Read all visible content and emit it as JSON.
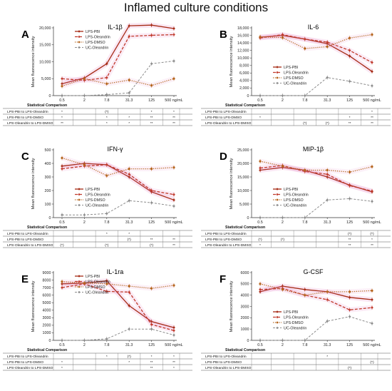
{
  "figure_title": "Inflamed culture conditions",
  "x_ticks": [
    "0.5",
    "2",
    "7.8",
    "31.3",
    "125",
    "500 ng/mL"
  ],
  "series_names": [
    "LPS-PBI",
    "LPS-Oleandrin",
    "LPS-DMSO",
    "UC-Oleandrin"
  ],
  "series_colors": [
    "#a52a14",
    "#c0392b",
    "#b5651d",
    "#8c8c8c"
  ],
  "stat_header": "Statistical Comparison",
  "stat_labels": [
    "LPS-PBI to LPS-Oleandrin",
    "LPS-PBI to LPS-DMSO",
    "LPS-Oleandrin to LPS-DMSO"
  ],
  "chart_data": [
    {
      "letter": "A",
      "title": "IL-1β",
      "type": "line",
      "ylabel": "Mean fluorescence intensity",
      "ylim": [
        0,
        20000
      ],
      "yticks": [
        "0",
        "5,000",
        "10,000",
        "15,000",
        "20,000"
      ],
      "yticks_values": [
        0,
        5000,
        10000,
        15000,
        20000
      ],
      "series": [
        {
          "name": "LPS-PBI",
          "values": [
            3500,
            5200,
            9400,
            20600,
            20800,
            19800
          ]
        },
        {
          "name": "LPS-Oleandrin",
          "values": [
            5000,
            4500,
            5300,
            17500,
            17800,
            18000
          ]
        },
        {
          "name": "LPS-DMSO",
          "values": [
            2800,
            5000,
            3500,
            4600,
            3000,
            5000
          ]
        },
        {
          "name": "UC-Oleandrin",
          "values": [
            0,
            0,
            300,
            800,
            9400,
            10200
          ]
        }
      ],
      "stats": [
        [
          "*",
          "",
          "(*)",
          "",
          "*",
          "*"
        ],
        [
          "*",
          "",
          "*",
          "*",
          "**",
          "**"
        ],
        [
          "**",
          "",
          "*",
          "*",
          "**",
          "**"
        ]
      ]
    },
    {
      "letter": "B",
      "title": "IL-6",
      "type": "line",
      "ylabel": "Mean fluorescence intensity",
      "ylim": [
        0,
        18000
      ],
      "yticks": [
        "0",
        "2,000",
        "4,000",
        "6,000",
        "8,000",
        "10,000",
        "12,000",
        "14,000",
        "16,000",
        "18,000"
      ],
      "yticks_values": [
        0,
        2000,
        4000,
        6000,
        8000,
        10000,
        12000,
        14000,
        16000,
        18000
      ],
      "series": [
        {
          "name": "LPS-PBI",
          "values": [
            15500,
            16000,
            15000,
            13800,
            10500,
            6400
          ]
        },
        {
          "name": "LPS-Oleandrin",
          "values": [
            15300,
            16200,
            15000,
            14200,
            12000,
            8800
          ]
        },
        {
          "name": "LPS-DMSO",
          "values": [
            15600,
            15400,
            12500,
            13000,
            15300,
            16200
          ]
        },
        {
          "name": "UC-Oleandrin",
          "values": [
            0,
            0,
            0,
            4800,
            3800,
            2600
          ]
        }
      ],
      "stats": [
        [
          "",
          "",
          "",
          "",
          "",
          "*"
        ],
        [
          "*",
          "",
          "",
          "",
          "*",
          "**"
        ],
        [
          "",
          "",
          "(*)",
          "(*)",
          "**",
          "**"
        ]
      ]
    },
    {
      "letter": "C",
      "title": "IFN-γ",
      "type": "line",
      "ylabel": "Mean fluorescence intensity",
      "ylim": [
        0,
        500
      ],
      "yticks": [
        "0",
        "100",
        "200",
        "300",
        "400",
        "500"
      ],
      "yticks_values": [
        0,
        100,
        200,
        300,
        400,
        500
      ],
      "series": [
        {
          "name": "LPS-PBI",
          "values": [
            380,
            400,
            390,
            300,
            190,
            130
          ]
        },
        {
          "name": "LPS-Oleandrin",
          "values": [
            360,
            380,
            390,
            320,
            200,
            170
          ]
        },
        {
          "name": "LPS-DMSO",
          "values": [
            440,
            390,
            310,
            360,
            360,
            370
          ]
        },
        {
          "name": "UC-Oleandrin",
          "values": [
            20,
            20,
            30,
            125,
            110,
            85
          ]
        }
      ],
      "stats": [
        [
          "",
          "",
          "*",
          "*",
          "",
          ""
        ],
        [
          "",
          "",
          "",
          "(*)",
          "**",
          "**"
        ],
        [
          "(*)",
          "",
          "(*)",
          "",
          "(*)",
          "**"
        ]
      ]
    },
    {
      "letter": "D",
      "title": "MIP-1β",
      "type": "line",
      "ylabel": "Mean fluorescence intensity",
      "ylim": [
        0,
        25000
      ],
      "yticks": [
        "0",
        "5,000",
        "10,000",
        "15,000",
        "20,000",
        "25,000"
      ],
      "yticks_values": [
        0,
        5000,
        10000,
        15000,
        20000,
        25000
      ],
      "series": [
        {
          "name": "LPS-PBI",
          "values": [
            17500,
            18500,
            17500,
            15000,
            12000,
            9500
          ]
        },
        {
          "name": "LPS-Oleandrin",
          "values": [
            18300,
            19200,
            17000,
            16000,
            11800,
            9800
          ]
        },
        {
          "name": "LPS-DMSO",
          "values": [
            20800,
            19000,
            17500,
            17500,
            16800,
            18800
          ]
        },
        {
          "name": "UC-Oleandrin",
          "values": [
            0,
            0,
            0,
            6500,
            7000,
            6000
          ]
        }
      ],
      "stats": [
        [
          "",
          "",
          "",
          "",
          "(*)",
          "(*)"
        ],
        [
          "(*)",
          "(*)",
          "",
          "",
          "**",
          "*"
        ],
        [
          "*",
          "",
          "",
          "",
          "**",
          "**"
        ]
      ]
    },
    {
      "letter": "E",
      "title": "IL-1ra",
      "type": "line",
      "ylabel": "Mean fluorescence intensity",
      "ylim": [
        0,
        9000
      ],
      "yticks": [
        "0",
        "1000",
        "2000",
        "3000",
        "4000",
        "5000",
        "6000",
        "7000",
        "8000",
        "9000"
      ],
      "yticks_values": [
        0,
        1000,
        2000,
        3000,
        4000,
        5000,
        6000,
        7000,
        8000,
        9000
      ],
      "series": [
        {
          "name": "LPS-PBI",
          "values": [
            7500,
            7600,
            7900,
            4600,
            2500,
            1700
          ]
        },
        {
          "name": "LPS-Oleandrin",
          "values": [
            7000,
            7500,
            6500,
            6400,
            2100,
            1300
          ]
        },
        {
          "name": "LPS-DMSO",
          "values": [
            7800,
            7600,
            7500,
            7200,
            6900,
            7300
          ]
        },
        {
          "name": "UC-Oleandrin",
          "values": [
            0,
            0,
            200,
            1500,
            1500,
            700
          ]
        }
      ],
      "stats": [
        [
          "",
          "",
          "*",
          "(*)",
          "*",
          "*"
        ],
        [
          "*",
          "",
          "",
          "*",
          "**",
          "**"
        ],
        [
          "*",
          "",
          "",
          "",
          "**",
          "*"
        ]
      ]
    },
    {
      "letter": "F",
      "title": "G-CSF",
      "type": "line",
      "ylabel": "Mean fluorescence intensity",
      "ylim": [
        0,
        6000
      ],
      "yticks": [
        "0",
        "1000",
        "2000",
        "3000",
        "4000",
        "5000",
        "6000"
      ],
      "yticks_values": [
        0,
        1000,
        2000,
        3000,
        4000,
        5000,
        6000
      ],
      "series": [
        {
          "name": "LPS-PBI",
          "values": [
            4300,
            4800,
            4500,
            4300,
            3800,
            3600
          ]
        },
        {
          "name": "LPS-Oleandrin",
          "values": [
            4500,
            4600,
            4000,
            3600,
            2700,
            2900
          ]
        },
        {
          "name": "LPS-DMSO",
          "values": [
            5000,
            4500,
            4000,
            4300,
            4300,
            4400
          ]
        },
        {
          "name": "UC-Oleandrin",
          "values": [
            0,
            0,
            0,
            1700,
            2100,
            1500
          ]
        }
      ],
      "stats": [
        [
          "",
          "",
          "",
          "*",
          "",
          ""
        ],
        [
          "",
          "",
          "",
          "",
          "",
          "(*)"
        ],
        [
          "",
          "",
          "",
          "",
          "(*)",
          ""
        ]
      ]
    }
  ]
}
